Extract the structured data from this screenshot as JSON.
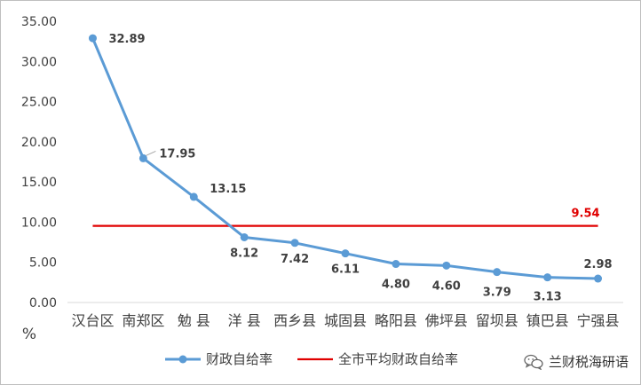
{
  "chart_data": {
    "type": "line",
    "ylabel": "%",
    "ylim": [
      0,
      35
    ],
    "yticks": [
      "0.00",
      "5.00",
      "10.00",
      "15.00",
      "20.00",
      "25.00",
      "30.00",
      "35.00"
    ],
    "categories": [
      "汉台区",
      "南郑区",
      "勉 县",
      "洋 县",
      "西乡县",
      "城固县",
      "略阳县",
      "佛坪县",
      "留坝县",
      "镇巴县",
      "宁强县"
    ],
    "series": [
      {
        "name": "财政自给率",
        "values": [
          32.89,
          17.95,
          13.15,
          8.12,
          7.42,
          6.11,
          4.8,
          4.6,
          3.79,
          3.13,
          2.98
        ],
        "labels": [
          "32.89",
          "17.95",
          "13.15",
          "8.12",
          "7.42",
          "6.11",
          "4.80",
          "4.60",
          "3.79",
          "3.13",
          "2.98"
        ],
        "color": "#5B9BD5"
      },
      {
        "name": "全市平均财政自给率",
        "value": 9.54,
        "label": "9.54",
        "color": "#E00000"
      }
    ],
    "grid": false,
    "legend": "bottom"
  },
  "watermark": {
    "text": "兰财税海研语",
    "icon": "wechat-icon"
  }
}
